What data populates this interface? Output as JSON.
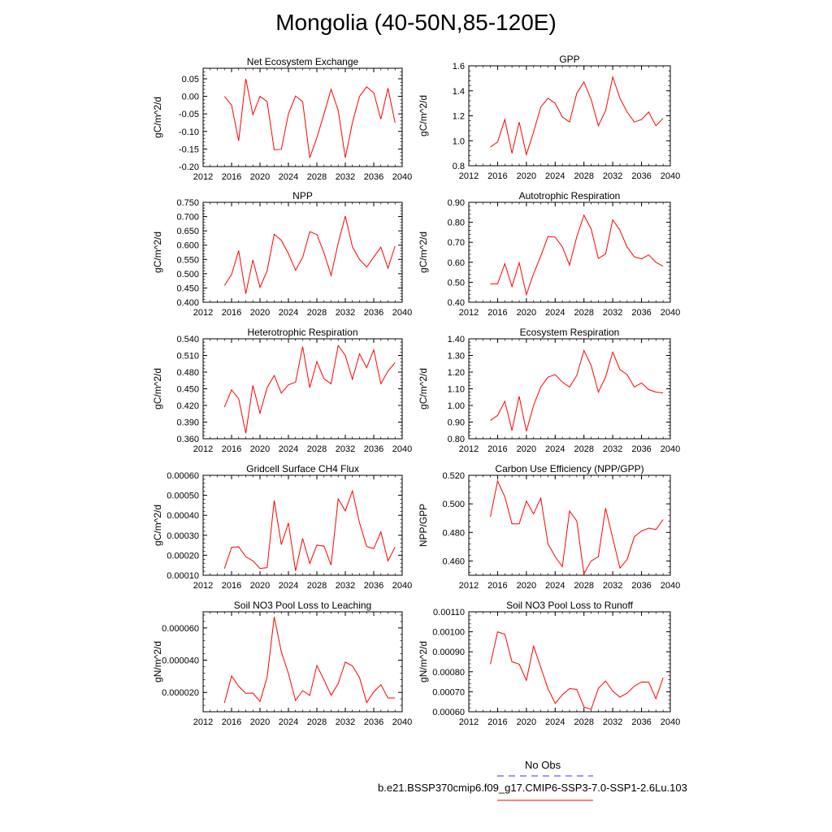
{
  "title": "Mongolia (40-50N,85-120E)",
  "legend": {
    "entries": [
      {
        "label": "No Obs",
        "color": "#3333ff",
        "style": "dashed"
      },
      {
        "label": "b.e21.BSSP370cmip6.f09_g17.CMIP6-SSP3-7.0-SSP1-2.6Lu.103",
        "color": "#ff0000",
        "style": "solid"
      }
    ]
  },
  "chart_data": [
    {
      "type": "line",
      "title": "Net Ecosystem Exchange",
      "ylabel": "gC/m^2/d",
      "xlim": [
        2012,
        2040
      ],
      "ylim": [
        -0.2,
        0.08
      ],
      "xticks": [
        "2012",
        "2016",
        "2020",
        "2024",
        "2028",
        "2032",
        "2036",
        "2040"
      ],
      "yticks": [
        -0.2,
        -0.15,
        -0.1,
        -0.05,
        0.0,
        0.05
      ],
      "ytick_labels": [
        "-0.20",
        "-0.15",
        "-0.10",
        "-0.05",
        "0.00",
        "0.05"
      ],
      "series": [
        {
          "color": "#ff0000",
          "x": [
            2015,
            2016,
            2017,
            2018,
            2019,
            2020,
            2021,
            2022,
            2023,
            2024,
            2025,
            2026,
            2027,
            2028,
            2029,
            2030,
            2031,
            2032,
            2033,
            2034,
            2035,
            2036,
            2037,
            2038,
            2039
          ],
          "y": [
            0.0,
            -0.025,
            -0.127,
            0.05,
            -0.052,
            0.0,
            -0.015,
            -0.152,
            -0.151,
            -0.05,
            0.001,
            -0.015,
            -0.175,
            -0.118,
            -0.05,
            0.02,
            -0.04,
            -0.175,
            -0.075,
            0.0,
            0.027,
            0.01,
            -0.065,
            0.023,
            -0.075
          ]
        }
      ]
    },
    {
      "type": "line",
      "title": "GPP",
      "ylabel": "gC/m^2/d",
      "xlim": [
        2012,
        2040
      ],
      "ylim": [
        0.8,
        1.6
      ],
      "xticks": [
        "2012",
        "2016",
        "2020",
        "2024",
        "2028",
        "2032",
        "2036",
        "2040"
      ],
      "yticks": [
        0.8,
        1.0,
        1.2,
        1.4,
        1.6
      ],
      "ytick_labels": [
        "0.8",
        "1.0",
        "1.2",
        "1.4",
        "1.6"
      ],
      "series": [
        {
          "color": "#ff0000",
          "x": [
            2015,
            2016,
            2017,
            2018,
            2019,
            2020,
            2021,
            2022,
            2023,
            2024,
            2025,
            2026,
            2027,
            2028,
            2029,
            2030,
            2031,
            2032,
            2033,
            2034,
            2035,
            2036,
            2037,
            2038,
            2039
          ],
          "y": [
            0.95,
            0.99,
            1.17,
            0.9,
            1.15,
            0.89,
            1.07,
            1.27,
            1.34,
            1.3,
            1.19,
            1.15,
            1.38,
            1.47,
            1.33,
            1.12,
            1.24,
            1.51,
            1.34,
            1.23,
            1.15,
            1.17,
            1.23,
            1.12,
            1.18
          ]
        }
      ]
    },
    {
      "type": "line",
      "title": "NPP",
      "ylabel": "gC/m^2/d",
      "xlim": [
        2012,
        2040
      ],
      "ylim": [
        0.4,
        0.75
      ],
      "xticks": [
        "2012",
        "2016",
        "2020",
        "2024",
        "2028",
        "2032",
        "2036",
        "2040"
      ],
      "yticks": [
        0.4,
        0.45,
        0.5,
        0.55,
        0.6,
        0.65,
        0.7,
        0.75
      ],
      "ytick_labels": [
        "0.400",
        "0.450",
        "0.500",
        "0.550",
        "0.600",
        "0.650",
        "0.700",
        "0.750"
      ],
      "series": [
        {
          "color": "#ff0000",
          "x": [
            2015,
            2016,
            2017,
            2018,
            2019,
            2020,
            2021,
            2022,
            2023,
            2024,
            2025,
            2026,
            2027,
            2028,
            2029,
            2030,
            2031,
            2032,
            2033,
            2034,
            2035,
            2036,
            2037,
            2038,
            2039
          ],
          "y": [
            0.459,
            0.497,
            0.581,
            0.43,
            0.548,
            0.452,
            0.51,
            0.638,
            0.617,
            0.57,
            0.512,
            0.557,
            0.647,
            0.637,
            0.573,
            0.494,
            0.607,
            0.702,
            0.594,
            0.55,
            0.523,
            0.558,
            0.593,
            0.519,
            0.597
          ]
        }
      ]
    },
    {
      "type": "line",
      "title": "Autotrophic Respiration",
      "ylabel": "gC/m^2/d",
      "xlim": [
        2012,
        2040
      ],
      "ylim": [
        0.4,
        0.9
      ],
      "xticks": [
        "2012",
        "2016",
        "2020",
        "2024",
        "2028",
        "2032",
        "2036",
        "2040"
      ],
      "yticks": [
        0.4,
        0.5,
        0.6,
        0.7,
        0.8,
        0.9
      ],
      "ytick_labels": [
        "0.40",
        "0.50",
        "0.60",
        "0.70",
        "0.80",
        "0.90"
      ],
      "series": [
        {
          "color": "#ff0000",
          "x": [
            2015,
            2016,
            2017,
            2018,
            2019,
            2020,
            2021,
            2022,
            2023,
            2024,
            2025,
            2026,
            2027,
            2028,
            2029,
            2030,
            2031,
            2032,
            2033,
            2034,
            2035,
            2036,
            2037,
            2038,
            2039
          ],
          "y": [
            0.492,
            0.492,
            0.593,
            0.478,
            0.598,
            0.438,
            0.543,
            0.631,
            0.729,
            0.726,
            0.677,
            0.586,
            0.727,
            0.836,
            0.767,
            0.619,
            0.641,
            0.812,
            0.76,
            0.676,
            0.627,
            0.617,
            0.637,
            0.6,
            0.58
          ]
        }
      ]
    },
    {
      "type": "line",
      "title": "Heterotrophic Respiration",
      "ylabel": "gC/m^2/d",
      "xlim": [
        2012,
        2040
      ],
      "ylim": [
        0.36,
        0.54
      ],
      "xticks": [
        "2012",
        "2016",
        "2020",
        "2024",
        "2028",
        "2032",
        "2036",
        "2040"
      ],
      "yticks": [
        0.36,
        0.39,
        0.42,
        0.45,
        0.48,
        0.51,
        0.54
      ],
      "ytick_labels": [
        "0.360",
        "0.390",
        "0.420",
        "0.450",
        "0.480",
        "0.510",
        "0.540"
      ],
      "series": [
        {
          "color": "#ff0000",
          "x": [
            2015,
            2016,
            2017,
            2018,
            2019,
            2020,
            2021,
            2022,
            2023,
            2024,
            2025,
            2026,
            2027,
            2028,
            2029,
            2030,
            2031,
            2032,
            2033,
            2034,
            2035,
            2036,
            2037,
            2038,
            2039
          ],
          "y": [
            0.417,
            0.448,
            0.432,
            0.37,
            0.456,
            0.406,
            0.452,
            0.474,
            0.442,
            0.457,
            0.462,
            0.526,
            0.452,
            0.499,
            0.468,
            0.459,
            0.528,
            0.51,
            0.467,
            0.513,
            0.488,
            0.52,
            0.459,
            0.482,
            0.497
          ]
        }
      ]
    },
    {
      "type": "line",
      "title": "Ecosystem Respiration",
      "ylabel": "gC/m^2/d",
      "xlim": [
        2012,
        2040
      ],
      "ylim": [
        0.8,
        1.4
      ],
      "xticks": [
        "2012",
        "2016",
        "2020",
        "2024",
        "2028",
        "2032",
        "2036",
        "2040"
      ],
      "yticks": [
        0.8,
        0.9,
        1.0,
        1.1,
        1.2,
        1.3,
        1.4
      ],
      "ytick_labels": [
        "0.80",
        "0.90",
        "1.00",
        "1.10",
        "1.20",
        "1.30",
        "1.40"
      ],
      "series": [
        {
          "color": "#ff0000",
          "x": [
            2015,
            2016,
            2017,
            2018,
            2019,
            2020,
            2021,
            2022,
            2023,
            2024,
            2025,
            2026,
            2027,
            2028,
            2029,
            2030,
            2031,
            2032,
            2033,
            2034,
            2035,
            2036,
            2037,
            2038,
            2039
          ],
          "y": [
            0.91,
            0.94,
            1.025,
            0.85,
            1.055,
            0.845,
            1.0,
            1.11,
            1.17,
            1.185,
            1.14,
            1.11,
            1.18,
            1.33,
            1.24,
            1.08,
            1.17,
            1.32,
            1.215,
            1.185,
            1.11,
            1.135,
            1.095,
            1.08,
            1.075
          ]
        }
      ]
    },
    {
      "type": "line",
      "title": "Gridcell Surface CH4 Flux",
      "ylabel": "gC/m^2/d",
      "xlim": [
        2012,
        2040
      ],
      "ylim": [
        0.0001,
        0.0006
      ],
      "xticks": [
        "2012",
        "2016",
        "2020",
        "2024",
        "2028",
        "2032",
        "2036",
        "2040"
      ],
      "yticks": [
        0.0001,
        0.0002,
        0.0003,
        0.0004,
        0.0005,
        0.0006
      ],
      "ytick_labels": [
        "0.00010",
        "0.00020",
        "0.00030",
        "0.00040",
        "0.00050",
        "0.00060"
      ],
      "series": [
        {
          "color": "#ff0000",
          "x": [
            2015,
            2016,
            2017,
            2018,
            2019,
            2020,
            2021,
            2022,
            2023,
            2024,
            2025,
            2026,
            2027,
            2028,
            2029,
            2030,
            2031,
            2032,
            2033,
            2034,
            2035,
            2036,
            2037,
            2038,
            2039
          ],
          "y": [
            0.000133,
            0.00024,
            0.000242,
            0.000193,
            0.000172,
            0.000134,
            0.000138,
            0.000474,
            0.000253,
            0.000362,
            0.000122,
            0.000284,
            0.000159,
            0.000251,
            0.000246,
            0.000151,
            0.000482,
            0.000422,
            0.000522,
            0.000362,
            0.000244,
            0.000233,
            0.000317,
            0.000172,
            0.000241
          ]
        }
      ]
    },
    {
      "type": "line",
      "title": "Carbon Use Efficiency (NPP/GPP)",
      "ylabel": "NPP/GPP",
      "xlim": [
        2012,
        2040
      ],
      "ylim": [
        0.45,
        0.52
      ],
      "xticks": [
        "2012",
        "2016",
        "2020",
        "2024",
        "2028",
        "2032",
        "2036",
        "2040"
      ],
      "yticks": [
        0.46,
        0.48,
        0.5,
        0.52
      ],
      "ytick_labels": [
        "0.460",
        "0.480",
        "0.500",
        "0.520"
      ],
      "series": [
        {
          "color": "#ff0000",
          "x": [
            2015,
            2016,
            2017,
            2018,
            2019,
            2020,
            2021,
            2022,
            2023,
            2024,
            2025,
            2026,
            2027,
            2028,
            2029,
            2030,
            2031,
            2032,
            2033,
            2034,
            2035,
            2036,
            2037,
            2038,
            2039
          ],
          "y": [
            0.491,
            0.516,
            0.505,
            0.486,
            0.486,
            0.502,
            0.493,
            0.504,
            0.472,
            0.463,
            0.456,
            0.495,
            0.488,
            0.451,
            0.46,
            0.463,
            0.497,
            0.476,
            0.455,
            0.461,
            0.477,
            0.481,
            0.483,
            0.482,
            0.489
          ]
        }
      ]
    },
    {
      "type": "line",
      "title": "Soil NO3 Pool Loss to Leaching",
      "ylabel": "gN/m^2/d",
      "xlim": [
        2012,
        2040
      ],
      "ylim": [
        8e-06,
        7e-05
      ],
      "xticks": [
        "2012",
        "2016",
        "2020",
        "2024",
        "2028",
        "2032",
        "2036",
        "2040"
      ],
      "yticks": [
        2e-05,
        4e-05,
        6e-05
      ],
      "ytick_labels": [
        "0.000020",
        "0.000040",
        "0.000060"
      ],
      "series": [
        {
          "color": "#ff0000",
          "x": [
            2015,
            2016,
            2017,
            2018,
            2019,
            2020,
            2021,
            2022,
            2023,
            2024,
            2025,
            2026,
            2027,
            2028,
            2029,
            2030,
            2031,
            2032,
            2033,
            2034,
            2035,
            2036,
            2037,
            2038,
            2039
          ],
          "y": [
            1.35e-05,
            3.02e-05,
            2.38e-05,
            1.94e-05,
            1.96e-05,
            1.44e-05,
            2.93e-05,
            6.68e-05,
            4.52e-05,
            3.17e-05,
            1.5e-05,
            2.11e-05,
            1.81e-05,
            3.67e-05,
            2.78e-05,
            1.82e-05,
            2.55e-05,
            3.88e-05,
            3.64e-05,
            2.92e-05,
            1.37e-05,
            2.03e-05,
            2.48e-05,
            1.65e-05,
            1.66e-05
          ]
        }
      ]
    },
    {
      "type": "line",
      "title": "Soil NO3 Pool Loss to Runoff",
      "ylabel": "gN/m^2/d",
      "xlim": [
        2012,
        2040
      ],
      "ylim": [
        0.0006,
        0.0011
      ],
      "xticks": [
        "2012",
        "2016",
        "2020",
        "2024",
        "2028",
        "2032",
        "2036",
        "2040"
      ],
      "yticks": [
        0.0006,
        0.0007,
        0.0008,
        0.0009,
        0.001,
        0.0011
      ],
      "ytick_labels": [
        "0.00060",
        "0.00070",
        "0.00080",
        "0.00090",
        "0.00100",
        "0.00110"
      ],
      "series": [
        {
          "color": "#ff0000",
          "x": [
            2015,
            2016,
            2017,
            2018,
            2019,
            2020,
            2021,
            2022,
            2023,
            2024,
            2025,
            2026,
            2027,
            2028,
            2029,
            2030,
            2031,
            2032,
            2033,
            2034,
            2035,
            2036,
            2037,
            2038,
            2039
          ],
          "y": [
            0.000838,
            0.001,
            0.000988,
            0.00085,
            0.000838,
            0.000757,
            0.000928,
            0.000822,
            0.000715,
            0.000642,
            0.000685,
            0.000716,
            0.000712,
            0.000624,
            0.000612,
            0.000717,
            0.000754,
            0.000703,
            0.000673,
            0.000693,
            0.000728,
            0.000749,
            0.000748,
            0.000665,
            0.00077
          ]
        }
      ]
    }
  ]
}
